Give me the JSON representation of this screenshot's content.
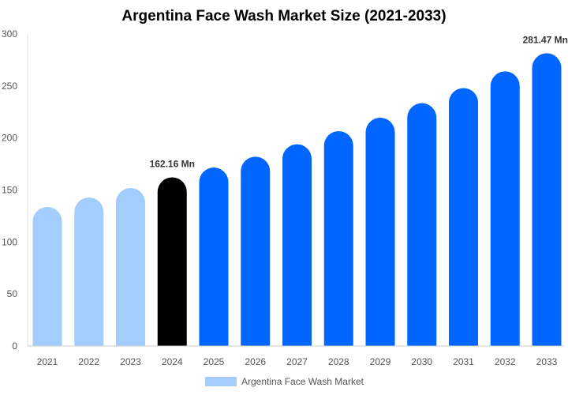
{
  "chart_data": {
    "type": "bar",
    "title": "Argentina Face Wash Market Size (2021-2033)",
    "xlabel": "",
    "ylabel": "",
    "ylim": [
      0,
      300
    ],
    "yticks": [
      0,
      50,
      100,
      150,
      200,
      250,
      300
    ],
    "grid": false,
    "legend_placement": "bottom",
    "categories": [
      "2021",
      "2022",
      "2023",
      "2024",
      "2025",
      "2026",
      "2027",
      "2028",
      "2029",
      "2030",
      "2031",
      "2032",
      "2033"
    ],
    "series": [
      {
        "name": "Argentina Face Wash Market",
        "values": [
          133.7,
          142.8,
          151.9,
          162.16,
          171.6,
          182.0,
          194.0,
          206.6,
          219.5,
          233.5,
          248.0,
          264.0,
          281.47
        ]
      }
    ],
    "bar_colors": [
      "#a3cdfc",
      "#a3cdfc",
      "#a3cdfc",
      "#000000",
      "#0066ff",
      "#0066ff",
      "#0066ff",
      "#0066ff",
      "#0066ff",
      "#0066ff",
      "#0066ff",
      "#0066ff",
      "#0066ff"
    ],
    "legend_color": "#a3cdfc",
    "annotations": [
      {
        "category": "2024",
        "text": "162.16 Mn"
      },
      {
        "category": "2033",
        "text": "281.47 Mn"
      }
    ]
  }
}
